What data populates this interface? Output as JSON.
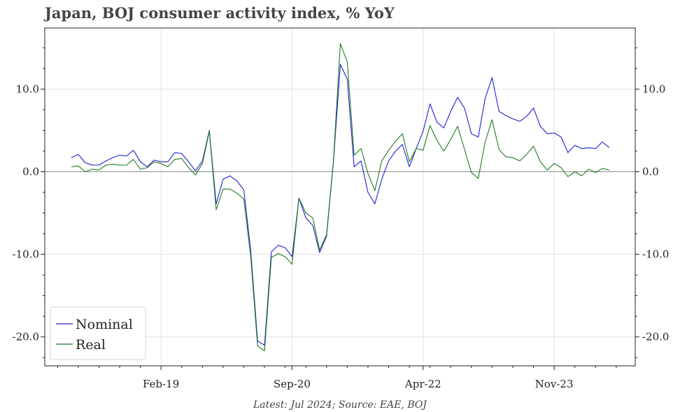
{
  "chart_data": {
    "type": "line",
    "title": "Japan, BOJ consumer activity index, % YoY",
    "source_note": "Latest: Jul 2024; Source: EAE, BOJ",
    "x_start": "2018-01",
    "x_end": "2024-07",
    "x_tick_labels": [
      {
        "label": "Feb-19",
        "date": "2019-02"
      },
      {
        "label": "Sep-20",
        "date": "2020-09"
      },
      {
        "label": "Apr-22",
        "date": "2022-04"
      },
      {
        "label": "Nov-23",
        "date": "2023-11"
      }
    ],
    "ylim": [
      -23.5,
      17.4
    ],
    "y_ticks": [
      10.0,
      0.0,
      -10.0,
      -20.0
    ],
    "y_tick_labels": [
      "10.0",
      "0.0",
      "-10.0",
      "-20.0"
    ],
    "grid": true,
    "zero_line": true,
    "legend_position": "bottom-left",
    "series": [
      {
        "name": "Nominal",
        "color": "#1f1fd6",
        "values": [
          1.7,
          2.1,
          1.1,
          0.8,
          0.8,
          1.3,
          1.7,
          2.0,
          1.9,
          2.6,
          1.2,
          0.6,
          1.4,
          1.2,
          1.2,
          2.3,
          2.2,
          1.2,
          0.1,
          1.3,
          5.0,
          -3.9,
          -0.9,
          -0.5,
          -1.1,
          -2.2,
          -9.5,
          -20.5,
          -21.0,
          -9.7,
          -8.9,
          -9.2,
          -10.3,
          -3.2,
          -5.6,
          -6.5,
          -9.8,
          -7.8,
          1.2,
          13.0,
          11.2,
          0.6,
          1.3,
          -2.5,
          -3.9,
          -0.9,
          1.3,
          2.5,
          3.3,
          0.6,
          2.8,
          4.9,
          8.2,
          6.0,
          5.3,
          7.3,
          9.0,
          7.7,
          4.6,
          4.2,
          8.9,
          11.4,
          7.3,
          6.8,
          6.4,
          6.1,
          6.7,
          7.7,
          5.5,
          4.6,
          4.7,
          4.2,
          2.3,
          3.2,
          2.8,
          2.9,
          2.8,
          3.6,
          2.9
        ]
      },
      {
        "name": "Real",
        "color": "#1f7a1f",
        "values": [
          0.6,
          0.7,
          0.0,
          0.3,
          0.2,
          0.8,
          0.9,
          0.8,
          0.8,
          1.5,
          0.3,
          0.5,
          1.2,
          1.0,
          0.6,
          1.5,
          1.6,
          0.5,
          -0.4,
          1.0,
          4.9,
          -4.6,
          -2.1,
          -2.1,
          -2.6,
          -3.3,
          -10.2,
          -21.1,
          -21.7,
          -10.4,
          -9.9,
          -10.3,
          -11.2,
          -3.2,
          -5.0,
          -5.6,
          -9.5,
          -7.6,
          1.3,
          15.5,
          13.3,
          2.0,
          2.8,
          -0.2,
          -2.3,
          1.3,
          2.6,
          3.7,
          4.6,
          1.2,
          2.8,
          2.6,
          5.6,
          3.8,
          2.5,
          3.9,
          5.5,
          2.7,
          -0.1,
          -0.8,
          3.6,
          6.3,
          2.7,
          1.8,
          1.7,
          1.3,
          2.1,
          3.1,
          1.2,
          0.2,
          1.0,
          0.5,
          -0.6,
          0.0,
          -0.5,
          0.3,
          -0.1,
          0.4,
          0.2
        ]
      }
    ]
  }
}
